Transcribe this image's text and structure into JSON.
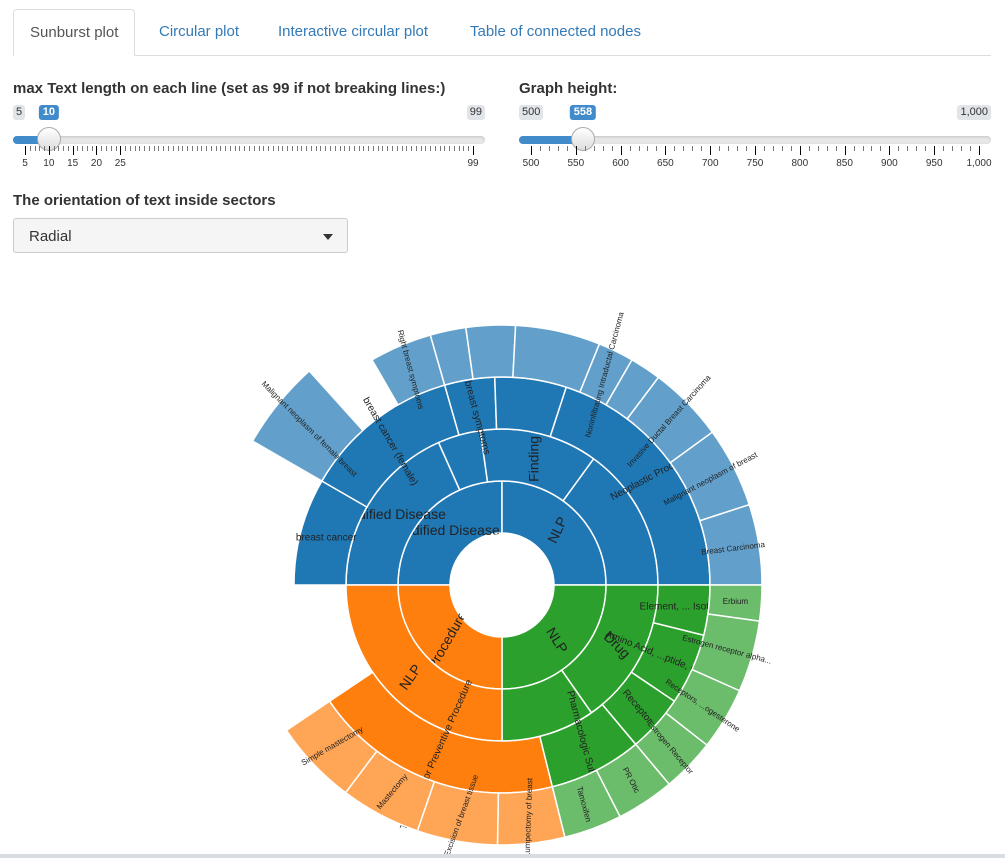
{
  "tabs": [
    {
      "label": "Sunburst plot",
      "active": true
    },
    {
      "label": "Circular plot",
      "active": false
    },
    {
      "label": "Interactive circular plot",
      "active": false
    },
    {
      "label": "Table of connected nodes",
      "active": false
    }
  ],
  "text_length_slider": {
    "label": "max Text length on each line (set as 99 if not breaking lines:)",
    "min_label": "5",
    "max_label": "99",
    "min": 5,
    "max": 99,
    "value": 10,
    "value_label": "10",
    "ticks": [
      "5",
      "10",
      "15",
      "20",
      "25",
      "99"
    ]
  },
  "graph_height_slider": {
    "label": "Graph height:",
    "min_label": "500",
    "max_label": "1,000",
    "min": 500,
    "max": 1000,
    "value": 558,
    "value_label": "558",
    "ticks": [
      "500",
      "550",
      "600",
      "650",
      "700",
      "750",
      "800",
      "850",
      "900",
      "950",
      "1,000"
    ]
  },
  "orientation_select": {
    "label": "The orientation of text inside sectors",
    "value": "Radial"
  },
  "colors": {
    "blue": "#1f77b4",
    "blue_light": "#62a0cb",
    "orange": "#ff7f0e",
    "orange_light": "#ffa556",
    "green": "#2ca02c",
    "green_light": "#6bbc6b"
  },
  "sunburst": {
    "rings": [
      [
        {
          "label": "Codified Disease",
          "start": 270,
          "end": 360,
          "color": "blue",
          "rot": 0
        },
        {
          "label": "NLP",
          "start": 360,
          "end": 450,
          "color": "blue",
          "rot": -65
        },
        {
          "label": "NLP",
          "start": 90,
          "end": 180,
          "color": "green",
          "rot": 58
        },
        {
          "label": "Procedure",
          "start": 180,
          "end": 270,
          "color": "orange",
          "rot": -60
        }
      ],
      [
        {
          "label": "Codified Disease",
          "start": 270,
          "end": 336,
          "color": "blue",
          "rot": 0
        },
        {
          "label": "",
          "start": 336,
          "end": 352,
          "color": "blue",
          "rot": 0
        },
        {
          "label": "Finding",
          "start": 352,
          "end": 396,
          "color": "blue",
          "rot": -90
        },
        {
          "label": "",
          "start": 396,
          "end": 450,
          "color": "blue",
          "rot": 0
        },
        {
          "label": "Drug",
          "start": 90,
          "end": 145,
          "color": "green",
          "rot": 45
        },
        {
          "label": "",
          "start": 145,
          "end": 180,
          "color": "green",
          "rot": 0
        },
        {
          "label": "NLP",
          "start": 180,
          "end": 270,
          "color": "orange",
          "rot": -55
        }
      ],
      [
        {
          "label": "breast cancer",
          "start": 270,
          "end": 300,
          "color": "blue",
          "rot": 0
        },
        {
          "label": "breast cancer (female)",
          "start": 300,
          "end": 344,
          "color": "blue",
          "rot": 60
        },
        {
          "label": "Right breast symptoms",
          "start": 344,
          "end": 358,
          "color": "blue",
          "rot": 75
        },
        {
          "label": "",
          "start": 358,
          "end": 378,
          "color": "blue",
          "rot": 0
        },
        {
          "label": "Neoplastic Process",
          "start": 378,
          "end": 450,
          "color": "blue",
          "rot": -28
        },
        {
          "label": "Element, ... Isotope",
          "start": 90,
          "end": 104,
          "color": "green",
          "rot": 0
        },
        {
          "label": "Amino Acid, ...ptide, or Protein",
          "start": 104,
          "end": 124,
          "color": "green",
          "rot": 22
        },
        {
          "label": "Receptor",
          "start": 124,
          "end": 140,
          "color": "green",
          "rot": 50
        },
        {
          "label": "Pharmacologic Substance",
          "start": 140,
          "end": 166,
          "color": "green",
          "rot": 75
        },
        {
          "label": "Therapeutic or Preventive Procedure",
          "start": 166,
          "end": 236,
          "color": "orange",
          "rot": -66
        }
      ],
      [
        {
          "label": "Malignant neoplasm of female breast",
          "start": 300,
          "end": 318,
          "color": "blue_light",
          "rot": 45,
          "ext": 28
        },
        {
          "label": "Right breast symptoms",
          "start": 330,
          "end": 344,
          "color": "blue_light",
          "rot": 75
        },
        {
          "label": "",
          "start": 344,
          "end": 352,
          "color": "blue_light",
          "rot": 0
        },
        {
          "label": "",
          "start": 352,
          "end": 363,
          "color": "blue_light",
          "rot": 0
        },
        {
          "label": "",
          "start": 363,
          "end": 382,
          "color": "blue_light",
          "rot": 0
        },
        {
          "label": "Noninfiltrating Intraductal Carcinoma",
          "start": 382,
          "end": 390,
          "color": "blue_light",
          "rot": -75
        },
        {
          "label": "",
          "start": 390,
          "end": 397,
          "color": "blue_light",
          "rot": 0
        },
        {
          "label": "Invasive Ductal Breast Carcinoma",
          "start": 397,
          "end": 414,
          "color": "blue_light",
          "rot": -48
        },
        {
          "label": "Malignant neoplasm of breast",
          "start": 414,
          "end": 432,
          "color": "blue_light",
          "rot": -28
        },
        {
          "label": "Breast Carcinoma",
          "start": 432,
          "end": 450,
          "color": "blue_light",
          "rot": -7
        },
        {
          "label": "Erbium",
          "start": 90,
          "end": 98,
          "color": "green_light",
          "rot": 0
        },
        {
          "label": "Estrogen receptor alpha...",
          "start": 98,
          "end": 114,
          "color": "green_light",
          "rot": 15
        },
        {
          "label": "Receptors, ...ogesterone",
          "start": 114,
          "end": 128,
          "color": "green_light",
          "rot": 34
        },
        {
          "label": "Estrogen Receptor",
          "start": 128,
          "end": 140,
          "color": "green_light",
          "rot": 50
        },
        {
          "label": "PR Otic",
          "start": 140,
          "end": 153,
          "color": "green_light",
          "rot": 62
        },
        {
          "label": "Tamoxifen",
          "start": 153,
          "end": 166,
          "color": "green_light",
          "rot": 75
        },
        {
          "label": "Lumpectomy of breast",
          "start": 166,
          "end": 181,
          "color": "orange_light",
          "rot": -88
        },
        {
          "label": "Excision of breast tissue",
          "start": 181,
          "end": 199,
          "color": "orange_light",
          "rot": -70
        },
        {
          "label": "Mastectomy",
          "start": 199,
          "end": 217,
          "color": "orange_light",
          "rot": -50
        },
        {
          "label": "Simple mastectomy",
          "start": 217,
          "end": 236,
          "color": "orange_light",
          "rot": -30
        }
      ]
    ]
  }
}
